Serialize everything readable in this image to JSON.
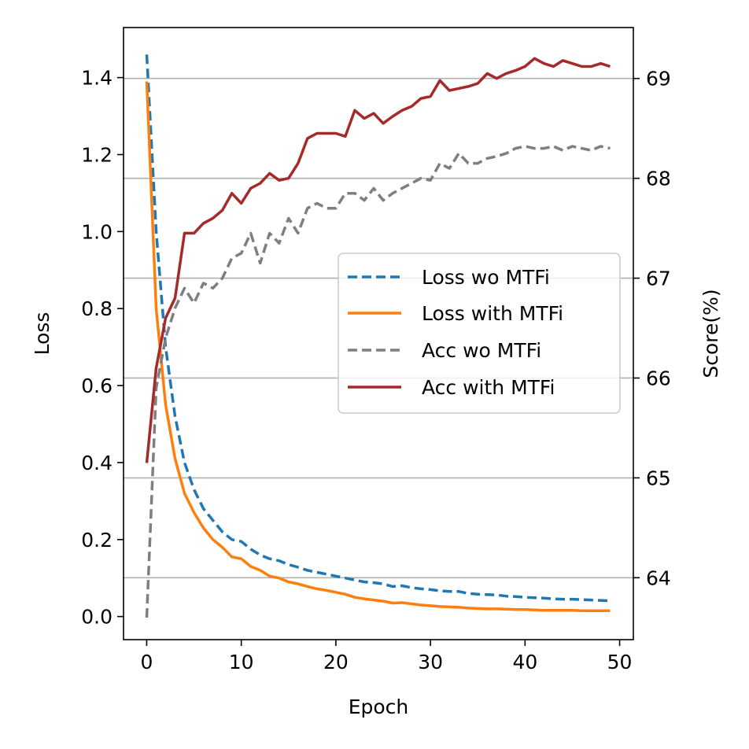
{
  "chart_data": {
    "type": "line",
    "xlabel": "Epoch",
    "ylabel": "Loss",
    "y2label": "Score(%)",
    "xlim": [
      -2.45,
      51.45
    ],
    "ylim": [
      -0.06,
      1.53
    ],
    "y2lim": [
      63.38,
      69.51
    ],
    "xticks": [
      0,
      10,
      20,
      30,
      40,
      50
    ],
    "yticks": [
      0.0,
      0.2,
      0.4,
      0.6,
      0.8,
      1.0,
      1.2,
      1.4
    ],
    "y2ticks": [
      64,
      65,
      66,
      67,
      68,
      69
    ],
    "grid": "horizontal gridlines at right-axis ticks",
    "legend_position": "center-right",
    "series": [
      {
        "name": "Loss wo MTFi",
        "axis": "left",
        "color": "#1f77b4",
        "dash": "dashed",
        "x": [
          0,
          1,
          2,
          3,
          4,
          5,
          6,
          7,
          8,
          9,
          10,
          11,
          12,
          13,
          14,
          15,
          16,
          17,
          18,
          19,
          20,
          21,
          22,
          23,
          24,
          25,
          26,
          27,
          28,
          29,
          30,
          31,
          32,
          33,
          34,
          35,
          36,
          37,
          38,
          39,
          40,
          41,
          42,
          43,
          44,
          45,
          46,
          47,
          48,
          49
        ],
        "values": [
          1.46,
          1.0,
          0.7,
          0.52,
          0.4,
          0.33,
          0.28,
          0.25,
          0.22,
          0.2,
          0.195,
          0.175,
          0.16,
          0.15,
          0.145,
          0.135,
          0.128,
          0.12,
          0.115,
          0.11,
          0.105,
          0.1,
          0.095,
          0.09,
          0.088,
          0.085,
          0.078,
          0.08,
          0.075,
          0.072,
          0.07,
          0.067,
          0.065,
          0.065,
          0.06,
          0.058,
          0.057,
          0.056,
          0.053,
          0.052,
          0.05,
          0.049,
          0.048,
          0.046,
          0.045,
          0.045,
          0.044,
          0.043,
          0.042,
          0.041
        ]
      },
      {
        "name": "Loss with MTFi",
        "axis": "left",
        "color": "#ff7f0e",
        "dash": "solid",
        "x": [
          0,
          1,
          2,
          3,
          4,
          5,
          6,
          7,
          8,
          9,
          10,
          11,
          12,
          13,
          14,
          15,
          16,
          17,
          18,
          19,
          20,
          21,
          22,
          23,
          24,
          25,
          26,
          27,
          28,
          29,
          30,
          31,
          32,
          33,
          34,
          35,
          36,
          37,
          38,
          39,
          40,
          41,
          42,
          43,
          44,
          45,
          46,
          47,
          48,
          49
        ],
        "values": [
          1.39,
          0.8,
          0.55,
          0.41,
          0.32,
          0.27,
          0.23,
          0.2,
          0.18,
          0.155,
          0.15,
          0.13,
          0.12,
          0.105,
          0.1,
          0.09,
          0.085,
          0.078,
          0.072,
          0.068,
          0.063,
          0.058,
          0.05,
          0.046,
          0.043,
          0.04,
          0.035,
          0.036,
          0.033,
          0.03,
          0.028,
          0.026,
          0.025,
          0.024,
          0.022,
          0.021,
          0.02,
          0.02,
          0.019,
          0.018,
          0.018,
          0.017,
          0.016,
          0.016,
          0.016,
          0.016,
          0.015,
          0.015,
          0.015,
          0.015
        ]
      },
      {
        "name": "Acc wo MTFi",
        "axis": "right",
        "color": "#7f7f7f",
        "dash": "dashed",
        "x": [
          0,
          1,
          2,
          3,
          4,
          5,
          6,
          7,
          8,
          9,
          10,
          11,
          12,
          13,
          14,
          15,
          16,
          17,
          18,
          19,
          20,
          21,
          22,
          23,
          24,
          25,
          26,
          27,
          28,
          29,
          30,
          31,
          32,
          33,
          34,
          35,
          36,
          37,
          38,
          39,
          40,
          41,
          42,
          43,
          44,
          45,
          46,
          47,
          48,
          49
        ],
        "values": [
          63.6,
          65.9,
          66.4,
          66.7,
          66.9,
          66.75,
          66.95,
          66.9,
          67.0,
          67.2,
          67.25,
          67.45,
          67.15,
          67.45,
          67.35,
          67.6,
          67.45,
          67.7,
          67.75,
          67.7,
          67.7,
          67.85,
          67.85,
          67.78,
          67.9,
          67.78,
          67.85,
          67.9,
          67.95,
          68.0,
          67.98,
          68.15,
          68.1,
          68.25,
          68.15,
          68.15,
          68.2,
          68.22,
          68.25,
          68.3,
          68.32,
          68.3,
          68.3,
          68.32,
          68.28,
          68.32,
          68.3,
          68.28,
          68.32,
          68.3
        ]
      },
      {
        "name": "Acc with MTFi",
        "axis": "right",
        "color": "#a52a2a",
        "dash": "solid",
        "x": [
          0,
          1,
          2,
          3,
          4,
          5,
          6,
          7,
          8,
          9,
          10,
          11,
          12,
          13,
          14,
          15,
          16,
          17,
          18,
          19,
          20,
          21,
          22,
          23,
          24,
          25,
          26,
          27,
          28,
          29,
          30,
          31,
          32,
          33,
          34,
          35,
          36,
          37,
          38,
          39,
          40,
          41,
          42,
          43,
          44,
          45,
          46,
          47,
          48,
          49
        ],
        "values": [
          65.15,
          66.1,
          66.6,
          66.8,
          67.45,
          67.45,
          67.55,
          67.6,
          67.68,
          67.85,
          67.75,
          67.9,
          67.95,
          68.05,
          67.98,
          68.0,
          68.15,
          68.4,
          68.45,
          68.45,
          68.45,
          68.42,
          68.68,
          68.6,
          68.65,
          68.55,
          68.62,
          68.68,
          68.72,
          68.8,
          68.82,
          68.98,
          68.88,
          68.9,
          68.92,
          68.95,
          69.05,
          69.0,
          69.05,
          69.08,
          69.12,
          69.2,
          69.15,
          69.12,
          69.18,
          69.15,
          69.12,
          69.12,
          69.15,
          69.12
        ]
      }
    ]
  }
}
